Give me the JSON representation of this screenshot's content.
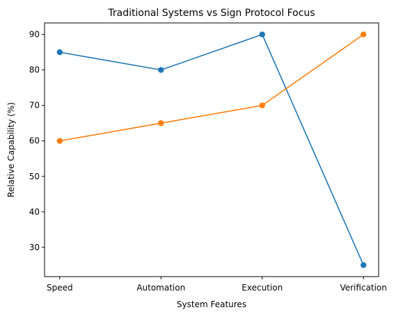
{
  "chart_data": {
    "type": "line",
    "title": "Traditional Systems vs Sign Protocol Focus",
    "xlabel": "System Features",
    "ylabel": "Relative Capability (%)",
    "categories": [
      "Speed",
      "Automation",
      "Execution",
      "Verification"
    ],
    "series": [
      {
        "color": "#1f77b4",
        "values": [
          85,
          80,
          90,
          25
        ]
      },
      {
        "color": "#ff7f0e",
        "values": [
          60,
          65,
          70,
          90
        ]
      }
    ],
    "ylim": [
      21.75,
      93.25
    ],
    "yticks": [
      30,
      40,
      50,
      60,
      70,
      80,
      90
    ],
    "grid": false,
    "markers": true
  }
}
